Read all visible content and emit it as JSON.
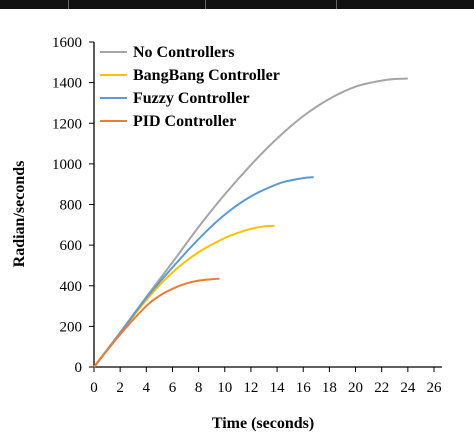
{
  "chart_data": {
    "type": "line",
    "xlabel": "Time (seconds)",
    "ylabel": "Radian/seconds",
    "xlim": [
      0,
      26
    ],
    "ylim": [
      0,
      1600
    ],
    "xticks": [
      0,
      2,
      4,
      6,
      8,
      10,
      12,
      14,
      16,
      18,
      20,
      22,
      24,
      26
    ],
    "yticks": [
      0,
      200,
      400,
      600,
      800,
      1000,
      1200,
      1400,
      1600
    ],
    "grid": false,
    "legend_position": "top-left",
    "series": [
      {
        "name": "No Controllers",
        "color": "#a5a5a5",
        "x": [
          0,
          2,
          4,
          6,
          8,
          10,
          12,
          14,
          16,
          18,
          20,
          22,
          23,
          24
        ],
        "y": [
          0,
          170,
          345,
          515,
          690,
          850,
          995,
          1125,
          1235,
          1320,
          1380,
          1410,
          1418,
          1420
        ]
      },
      {
        "name": "BangBang Controller",
        "color": "#ffc000",
        "x": [
          0,
          2,
          4,
          6,
          8,
          10,
          11,
          12,
          13,
          13.8
        ],
        "y": [
          0,
          165,
          330,
          465,
          565,
          635,
          660,
          680,
          692,
          695
        ]
      },
      {
        "name": "Fuzzy Controller",
        "color": "#5b9bd5",
        "x": [
          0,
          2,
          4,
          6,
          8,
          10,
          12,
          14,
          15,
          16,
          16.8
        ],
        "y": [
          0,
          168,
          340,
          490,
          630,
          750,
          840,
          900,
          918,
          930,
          935
        ]
      },
      {
        "name": "PID Controller",
        "color": "#ed7d31",
        "x": [
          0,
          2,
          4,
          5,
          6,
          7,
          8,
          9,
          9.6
        ],
        "y": [
          0,
          160,
          300,
          350,
          385,
          410,
          425,
          432,
          435
        ]
      }
    ]
  }
}
